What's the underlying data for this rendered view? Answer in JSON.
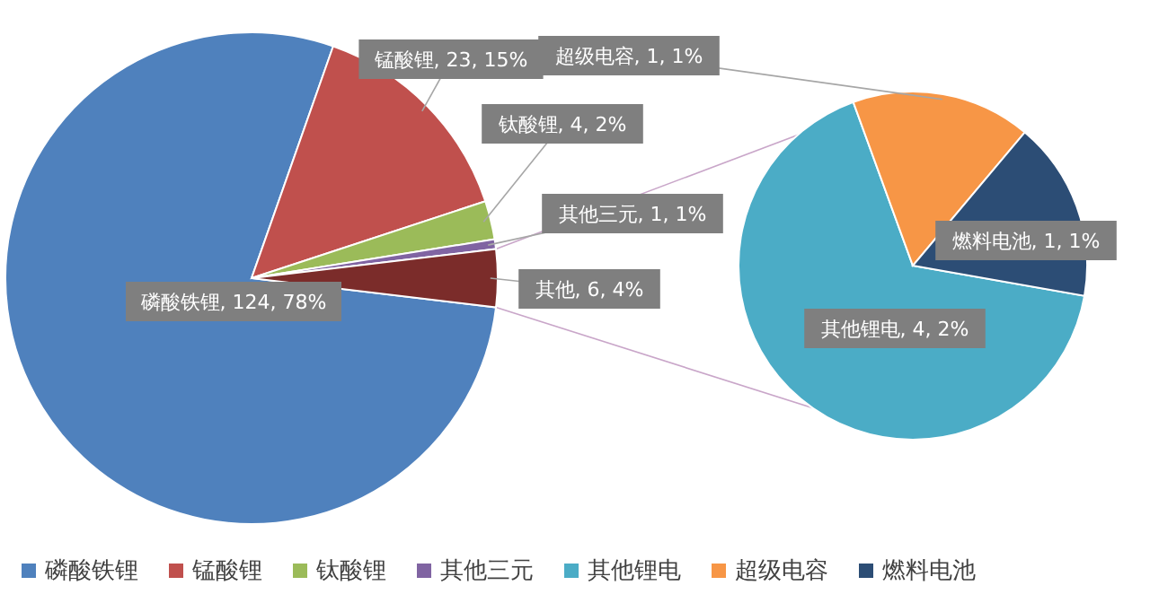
{
  "chart_data": [
    {
      "type": "pie",
      "categories": [
        "磷酸铁锂",
        "锰酸锂",
        "钛酸锂",
        "其他三元",
        "其他"
      ],
      "values": [
        124,
        23,
        4,
        1,
        6
      ],
      "colors": [
        "#4f81bd",
        "#c0504d",
        "#9bbb59",
        "#8064a2",
        "#7b2c2a"
      ],
      "value_labels": [
        ", 124, 78%",
        ", 23, 15%",
        ", 4, 2%",
        ", 1, 1%",
        ", 6, 4%"
      ],
      "legend": "bottom"
    },
    {
      "type": "pie",
      "categories": [
        "其他锂电",
        "超级电容",
        "燃料电池"
      ],
      "values": [
        4,
        1,
        1
      ],
      "colors": [
        "#4bacc6",
        "#f79646",
        "#2c4d75"
      ],
      "value_labels": [
        ", 4, 2%",
        ", 1, 1%",
        ", 1, 1%"
      ],
      "legend": "bottom"
    }
  ]
}
